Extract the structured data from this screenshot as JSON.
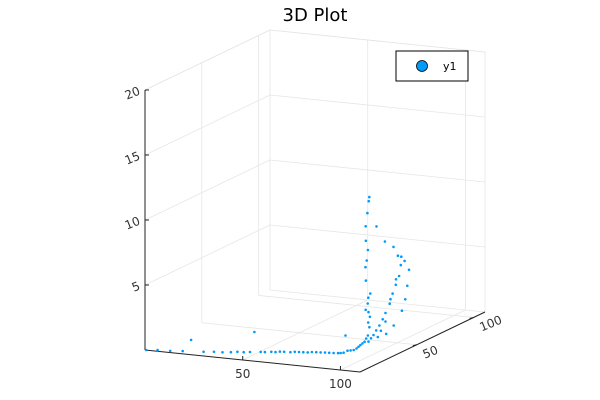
{
  "chart_data": {
    "type": "scatter",
    "title": "3D Plot",
    "xlabel": "",
    "ylabel": "",
    "zlabel": "",
    "xlim": [
      0,
      110
    ],
    "ylim": [
      0,
      110
    ],
    "zlim": [
      0,
      20
    ],
    "x_ticks": [
      "50",
      "100"
    ],
    "y_ticks": [
      "50",
      "100"
    ],
    "z_ticks": [
      "5",
      "10",
      "15",
      "20"
    ],
    "x_tick_values": [
      50,
      100
    ],
    "y_tick_values": [
      50,
      100
    ],
    "z_tick_values": [
      5,
      10,
      15,
      20
    ],
    "grid": true,
    "legend_position": "top-right",
    "series": [
      {
        "name": "y1",
        "color": "#009AF9",
        "points": [
          [
            0.5,
            0.2,
            0.0
          ],
          [
            6,
            0.8,
            0.05
          ],
          [
            12,
            1.5,
            0.05
          ],
          [
            18,
            2.2,
            0.1
          ],
          [
            22,
            2.7,
            1.0
          ],
          [
            28,
            3.4,
            0.15
          ],
          [
            33,
            4.0,
            0.2
          ],
          [
            37,
            4.6,
            0.2
          ],
          [
            41,
            5.1,
            0.25
          ],
          [
            44,
            5.6,
            0.3
          ],
          [
            47,
            6.0,
            0.3
          ],
          [
            50,
            6.4,
            0.35
          ],
          [
            52,
            6.8,
            1.9
          ],
          [
            55,
            7.2,
            0.4
          ],
          [
            57,
            7.5,
            0.4
          ],
          [
            60,
            7.9,
            0.45
          ],
          [
            62,
            8.2,
            0.45
          ],
          [
            64,
            8.6,
            0.5
          ],
          [
            66,
            8.9,
            0.5
          ],
          [
            69,
            9.3,
            0.5
          ],
          [
            71,
            9.7,
            0.55
          ],
          [
            73,
            10.0,
            0.55
          ],
          [
            75,
            10.3,
            0.55
          ],
          [
            77,
            10.7,
            0.55
          ],
          [
            79,
            11.0,
            0.6
          ],
          [
            81,
            11.4,
            0.6
          ],
          [
            83,
            11.8,
            0.6
          ],
          [
            85,
            12.2,
            0.6
          ],
          [
            87,
            12.5,
            0.6
          ],
          [
            89,
            12.9,
            0.6
          ],
          [
            91,
            13.4,
            0.6
          ],
          [
            92,
            14.0,
            0.6
          ],
          [
            93,
            14.8,
            0.6
          ],
          [
            93.5,
            15.6,
            1.9
          ],
          [
            94,
            16.5,
            0.7
          ],
          [
            95,
            17.5,
            0.7
          ],
          [
            96,
            18.5,
            0.7
          ],
          [
            97,
            19.3,
            0.8
          ],
          [
            97.5,
            20.2,
            0.9
          ],
          [
            98,
            21.0,
            1.0
          ],
          [
            98.5,
            22.0,
            1.1
          ],
          [
            99,
            23.0,
            1.2
          ],
          [
            99.2,
            24.0,
            1.4
          ],
          [
            99.5,
            25.0,
            1.6
          ],
          [
            99.7,
            26.0,
            2.2
          ],
          [
            98.5,
            27.0,
            2.5
          ],
          [
            98.8,
            28.0,
            2.9
          ],
          [
            97.5,
            29.0,
            3.2
          ],
          [
            96.5,
            30.0,
            3.8
          ],
          [
            95.5,
            30.0,
            3.3
          ],
          [
            96.2,
            31.0,
            4.2
          ],
          [
            96.8,
            31.8,
            4.5
          ],
          [
            95.0,
            31.0,
            5.5
          ],
          [
            94.5,
            31.5,
            6.5
          ],
          [
            94.8,
            32.0,
            7.0
          ],
          [
            95.2,
            32.4,
            7.8
          ],
          [
            94.3,
            32.2,
            8.5
          ],
          [
            94.0,
            32.5,
            9.6
          ],
          [
            94.6,
            33.0,
            10.6
          ],
          [
            94.9,
            33.6,
            11.5
          ],
          [
            95.0,
            34.0,
            11.8
          ],
          [
            97.5,
            36.0,
            9.5
          ],
          [
            99.5,
            40.0,
            8.2
          ],
          [
            101.0,
            45.0,
            7.6
          ],
          [
            101.5,
            48.0,
            6.8
          ],
          [
            101.8,
            50.0,
            6.0
          ],
          [
            101.5,
            49.0,
            5.2
          ],
          [
            101.0,
            47.0,
            4.6
          ],
          [
            100.5,
            45.0,
            4.0
          ],
          [
            100.2,
            43.0,
            3.3
          ],
          [
            99.8,
            40.0,
            2.7
          ],
          [
            99.5,
            38.0,
            2.3
          ],
          [
            99.0,
            36.0,
            1.9
          ],
          [
            98.5,
            34.0,
            1.6
          ],
          [
            98.0,
            32.5,
            1.3
          ],
          [
            97.6,
            31.0,
            1.1
          ],
          [
            97.2,
            29.5,
            0.9
          ],
          [
            99.0,
            42.0,
            1.0
          ],
          [
            100.5,
            46.0,
            1.5
          ],
          [
            101.2,
            52.0,
            2.4
          ],
          [
            101.8,
            54.0,
            3.2
          ],
          [
            102.2,
            55.0,
            4.2
          ],
          [
            102.5,
            56.0,
            5.4
          ],
          [
            102.0,
            53.0,
            6.2
          ],
          [
            101.5,
            51.0,
            6.6
          ],
          [
            100.8,
            47.5,
            5.0
          ],
          [
            100.0,
            44.0,
            3.6
          ],
          [
            99.2,
            41.0,
            2.0
          ],
          [
            98.6,
            38.0,
            1.4
          ],
          [
            98.2,
            36.0,
            1.0
          ]
        ]
      }
    ]
  }
}
